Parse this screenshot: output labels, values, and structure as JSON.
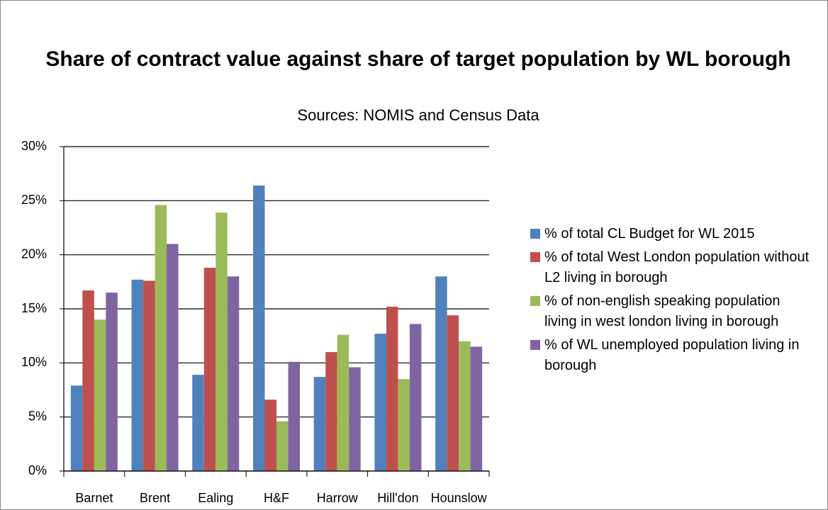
{
  "chart_data": {
    "type": "bar",
    "title": "Share of contract value against share of target population by WL borough",
    "subtitle": "Sources: NOMIS and Census Data",
    "categories": [
      "Barnet",
      "Brent",
      "Ealing",
      "H&F",
      "Harrow",
      "Hill'don",
      "Hounslow"
    ],
    "series": [
      {
        "name": "% of total CL Budget for WL 2015",
        "color": "#4f81bd",
        "values": [
          7.9,
          17.7,
          8.9,
          26.4,
          8.7,
          12.7,
          18.0
        ]
      },
      {
        "name": "% of total West London population without L2 living in borough",
        "color": "#c0504d",
        "values": [
          16.7,
          17.6,
          18.8,
          6.6,
          11.0,
          15.2,
          14.4
        ]
      },
      {
        "name": "% of non-english speaking population living in west london living in borough",
        "color": "#9bbb59",
        "values": [
          14.0,
          24.6,
          23.9,
          4.6,
          12.6,
          8.5,
          12.0
        ]
      },
      {
        "name": "% of WL unemployed population living in borough",
        "color": "#8064a2",
        "values": [
          16.5,
          21.0,
          18.0,
          10.1,
          9.6,
          13.6,
          11.5
        ]
      }
    ],
    "ylim": [
      0,
      30
    ],
    "yticks": [
      {
        "value": 0,
        "label": "0%"
      },
      {
        "value": 5,
        "label": "5%"
      },
      {
        "value": 10,
        "label": "10%"
      },
      {
        "value": 15,
        "label": "15%"
      },
      {
        "value": 20,
        "label": "20%"
      },
      {
        "value": 25,
        "label": "25%"
      },
      {
        "value": 30,
        "label": "30%"
      }
    ],
    "grid": true,
    "legend": "right"
  }
}
